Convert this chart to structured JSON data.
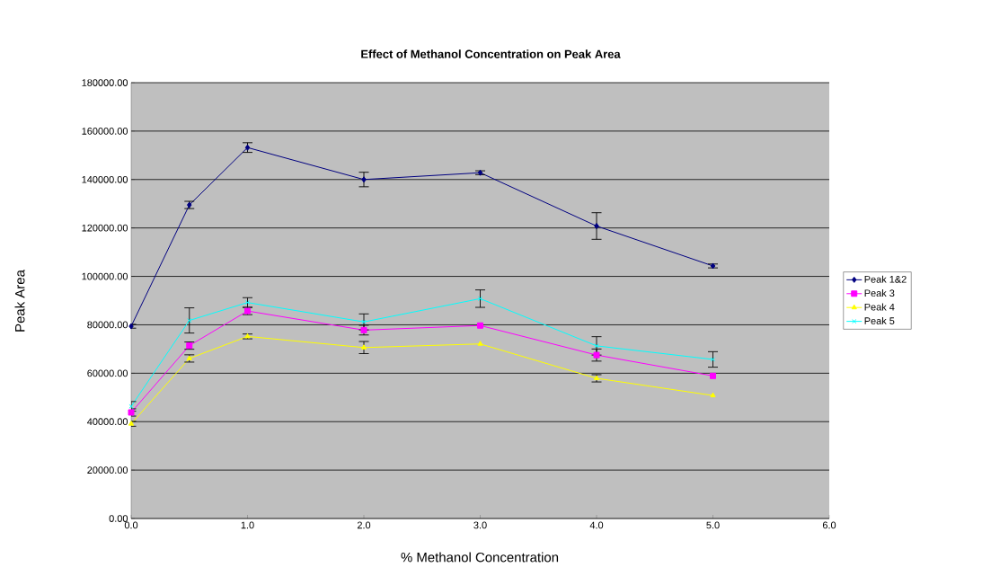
{
  "chart_data": {
    "type": "line",
    "title": "Effect of Methanol Concentration on Peak Area",
    "xlabel": "% Methanol Concentration",
    "ylabel": "Peak Area",
    "x": [
      0,
      0.5,
      1,
      2,
      3,
      4,
      5
    ],
    "series": [
      {
        "name": "Peak 1&2",
        "color": "#000080",
        "marker": "diamond",
        "values": [
          79400,
          129500,
          153200,
          140000,
          142800,
          120800,
          104300
        ],
        "errors": [
          800,
          1500,
          2000,
          3000,
          800,
          5500,
          800
        ]
      },
      {
        "name": "Peak 3",
        "color": "#ff00ff",
        "marker": "square",
        "values": [
          43800,
          71400,
          85700,
          77800,
          79700,
          67500,
          58900
        ],
        "errors": [
          1500,
          1500,
          1500,
          2000,
          null,
          2500,
          null
        ]
      },
      {
        "name": "Peak 4",
        "color": "#ffff00",
        "marker": "triangle",
        "values": [
          39100,
          66100,
          75200,
          70600,
          72100,
          57900,
          50800
        ],
        "errors": [
          1000,
          1500,
          1000,
          2500,
          null,
          1500,
          null
        ]
      },
      {
        "name": "Peak 5",
        "color": "#00ffff",
        "marker": "cross",
        "values": [
          46300,
          81800,
          89200,
          81200,
          90800,
          71300,
          65700
        ],
        "errors": [
          2000,
          5200,
          2000,
          3300,
          3600,
          3800,
          3200
        ]
      }
    ],
    "xlim": [
      0,
      6
    ],
    "ylim": [
      0,
      180000
    ],
    "xticks": [
      {
        "value": 0,
        "label": "0.0"
      },
      {
        "value": 1,
        "label": "1.0"
      },
      {
        "value": 2,
        "label": "2.0"
      },
      {
        "value": 3,
        "label": "3.0"
      },
      {
        "value": 4,
        "label": "4.0"
      },
      {
        "value": 5,
        "label": "5.0"
      },
      {
        "value": 6,
        "label": "6.0"
      }
    ],
    "yticks": [
      {
        "value": 0,
        "label": "0.00"
      },
      {
        "value": 20000,
        "label": "20000.00"
      },
      {
        "value": 40000,
        "label": "40000.00"
      },
      {
        "value": 60000,
        "label": "60000.00"
      },
      {
        "value": 80000,
        "label": "80000.00"
      },
      {
        "value": 100000,
        "label": "100000.00"
      },
      {
        "value": 120000,
        "label": "120000.00"
      },
      {
        "value": 140000,
        "label": "140000.00"
      },
      {
        "value": 160000,
        "label": "160000.00"
      },
      {
        "value": 180000,
        "label": "180000.00"
      }
    ],
    "grid": "y",
    "legend": "right",
    "line_style": "solid"
  }
}
